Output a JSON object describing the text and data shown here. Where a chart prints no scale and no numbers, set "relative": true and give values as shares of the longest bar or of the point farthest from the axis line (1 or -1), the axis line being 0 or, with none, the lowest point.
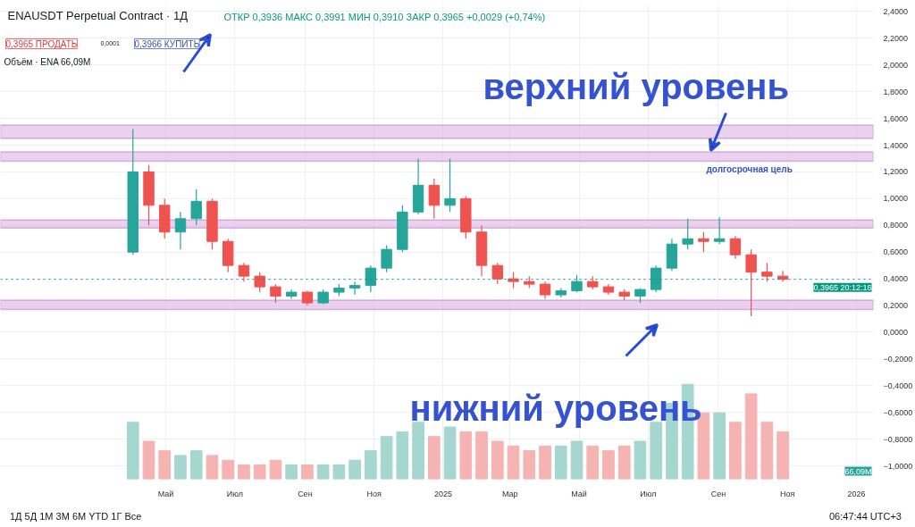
{
  "chart_data": [
    {
      "type": "candlestick",
      "title": "ENAUSDT Perpetual Contract · 1Д",
      "subtitle": "ОТКР 0,3936 МАКС 0,3991 МИН 0,3910 ЗАКР 0,3965 +0,0029 (+0,74%)",
      "x": [
        "2024-04-02",
        "2024-04-16",
        "2024-04-30",
        "2024-05-14",
        "2024-05-28",
        "2024-06-11",
        "2024-06-25",
        "2024-07-09",
        "2024-07-23",
        "2024-08-06",
        "2024-08-20",
        "2024-09-03",
        "2024-09-17",
        "2024-10-01",
        "2024-10-15",
        "2024-10-29",
        "2024-11-12",
        "2024-11-26",
        "2024-12-10",
        "2024-12-24",
        "2025-01-07",
        "2025-01-21",
        "2025-02-04",
        "2025-02-18",
        "2025-03-04",
        "2025-03-18",
        "2025-04-01",
        "2025-04-15",
        "2025-04-29",
        "2025-05-13",
        "2025-05-27",
        "2025-06-10",
        "2025-06-24",
        "2025-07-08",
        "2025-07-22",
        "2025-08-05",
        "2025-08-19",
        "2025-09-02",
        "2025-09-16",
        "2025-09-30",
        "2025-10-14",
        "2025-10-28"
      ],
      "ohlc": [
        [
          0.6,
          1.52,
          0.58,
          1.2
        ],
        [
          1.2,
          1.25,
          0.8,
          0.95
        ],
        [
          0.95,
          1.0,
          0.7,
          0.75
        ],
        [
          0.75,
          0.9,
          0.62,
          0.85
        ],
        [
          0.85,
          1.07,
          0.8,
          0.98
        ],
        [
          0.98,
          1.0,
          0.62,
          0.68
        ],
        [
          0.68,
          0.7,
          0.45,
          0.5
        ],
        [
          0.5,
          0.52,
          0.38,
          0.42
        ],
        [
          0.42,
          0.45,
          0.3,
          0.34
        ],
        [
          0.34,
          0.36,
          0.22,
          0.27
        ],
        [
          0.27,
          0.32,
          0.25,
          0.3
        ],
        [
          0.3,
          0.31,
          0.2,
          0.22
        ],
        [
          0.22,
          0.32,
          0.21,
          0.3
        ],
        [
          0.3,
          0.36,
          0.27,
          0.33
        ],
        [
          0.33,
          0.38,
          0.28,
          0.35
        ],
        [
          0.35,
          0.5,
          0.3,
          0.48
        ],
        [
          0.48,
          0.65,
          0.45,
          0.62
        ],
        [
          0.62,
          0.95,
          0.6,
          0.9
        ],
        [
          0.9,
          1.3,
          0.88,
          1.1
        ],
        [
          1.1,
          1.15,
          0.85,
          0.95
        ],
        [
          0.95,
          1.3,
          0.9,
          1.0
        ],
        [
          1.0,
          1.02,
          0.7,
          0.75
        ],
        [
          0.75,
          0.8,
          0.42,
          0.5
        ],
        [
          0.5,
          0.52,
          0.36,
          0.4
        ],
        [
          0.4,
          0.45,
          0.33,
          0.38
        ],
        [
          0.38,
          0.42,
          0.33,
          0.36
        ],
        [
          0.36,
          0.38,
          0.25,
          0.28
        ],
        [
          0.28,
          0.33,
          0.26,
          0.31
        ],
        [
          0.31,
          0.43,
          0.3,
          0.38
        ],
        [
          0.38,
          0.42,
          0.32,
          0.34
        ],
        [
          0.34,
          0.36,
          0.28,
          0.3
        ],
        [
          0.3,
          0.32,
          0.24,
          0.27
        ],
        [
          0.27,
          0.33,
          0.22,
          0.32
        ],
        [
          0.32,
          0.5,
          0.3,
          0.48
        ],
        [
          0.48,
          0.7,
          0.46,
          0.66
        ],
        [
          0.66,
          0.85,
          0.62,
          0.7
        ],
        [
          0.7,
          0.75,
          0.6,
          0.68
        ],
        [
          0.68,
          0.86,
          0.66,
          0.7
        ],
        [
          0.7,
          0.72,
          0.55,
          0.58
        ],
        [
          0.58,
          0.62,
          0.12,
          0.45
        ],
        [
          0.45,
          0.52,
          0.38,
          0.42
        ],
        [
          0.42,
          0.46,
          0.38,
          0.3965
        ]
      ],
      "colors": [
        "#26a69a",
        "#ef5350",
        "#ef5350",
        "#26a69a",
        "#26a69a",
        "#ef5350",
        "#ef5350",
        "#ef5350",
        "#ef5350",
        "#ef5350",
        "#26a69a",
        "#ef5350",
        "#26a69a",
        "#26a69a",
        "#26a69a",
        "#26a69a",
        "#26a69a",
        "#26a69a",
        "#26a69a",
        "#ef5350",
        "#26a69a",
        "#ef5350",
        "#ef5350",
        "#ef5350",
        "#ef5350",
        "#ef5350",
        "#ef5350",
        "#26a69a",
        "#26a69a",
        "#ef5350",
        "#ef5350",
        "#ef5350",
        "#26a69a",
        "#26a69a",
        "#26a69a",
        "#26a69a",
        "#ef5350",
        "#26a69a",
        "#ef5350",
        "#ef5350",
        "#ef5350",
        "#ef5350"
      ],
      "xlim": [
        "2023-12-07",
        "2026-01-16"
      ],
      "xticks": [
        {
          "value": "2024-05-01",
          "label": "Май"
        },
        {
          "value": "2024-07-01",
          "label": "Июл"
        },
        {
          "value": "2024-09-01",
          "label": "Сен"
        },
        {
          "value": "2024-11-01",
          "label": "Ноя"
        },
        {
          "value": "2025-01-01",
          "label": "2025"
        },
        {
          "value": "2025-03-01",
          "label": "Мар"
        },
        {
          "value": "2025-05-01",
          "label": "Май"
        },
        {
          "value": "2025-07-01",
          "label": "Июл"
        },
        {
          "value": "2025-09-01",
          "label": "Сен"
        },
        {
          "value": "2025-11-01",
          "label": "Ноя"
        },
        {
          "value": "2026-01-01",
          "label": "2026"
        }
      ],
      "ylim": [
        -1.1,
        2.45
      ],
      "yticks": [
        {
          "value": 2.4,
          "label": "2,4000"
        },
        {
          "value": 2.2,
          "label": "2,2000"
        },
        {
          "value": 2.0,
          "label": "2,0000"
        },
        {
          "value": 1.8,
          "label": "1,8000"
        },
        {
          "value": 1.6,
          "label": "1,6000"
        },
        {
          "value": 1.4,
          "label": "1,4000"
        },
        {
          "value": 1.2,
          "label": "1,2000"
        },
        {
          "value": 1.0,
          "label": "1,0000"
        },
        {
          "value": 0.8,
          "label": "0,8000"
        },
        {
          "value": 0.6,
          "label": "0,6000"
        },
        {
          "value": 0.4,
          "label": "0,4000"
        },
        {
          "value": 0.2,
          "label": "0,2000"
        },
        {
          "value": 0,
          "label": "0,0000"
        },
        {
          "value": -0.2,
          "label": "−0,2000"
        },
        {
          "value": -0.4,
          "label": "−0,4000"
        },
        {
          "value": -0.6,
          "label": "−0,6000"
        },
        {
          "value": -0.8,
          "label": "−0,8000"
        },
        {
          "value": -1.0,
          "label": "−1,0000"
        }
      ],
      "grid": true,
      "bands": [
        {
          "axis": "y",
          "from": 1.45,
          "to": 1.55,
          "color": "#e1bee7"
        },
        {
          "axis": "y",
          "from": 1.28,
          "to": 1.35,
          "color": "#e1bee7"
        },
        {
          "axis": "y",
          "from": 0.78,
          "to": 0.84,
          "color": "#e1bee7"
        },
        {
          "axis": "y",
          "from": 0.17,
          "to": 0.24,
          "color": "#e1bee7"
        }
      ],
      "ref_lines": [
        {
          "axis": "y",
          "value": 0.3965,
          "label": "0,3965 20:12:16",
          "color": "#089981",
          "line_style": "dotted"
        }
      ],
      "annotations": [
        "0,3965 ПРОДАТЬ",
        "0,0001",
        "0,3966 КУПИТЬ",
        "Объём · ENA 66,09M",
        "верхний уровень",
        "долгосрочная цель",
        "нижний уровень",
        "1Д 5Д 1М 3М 6М YTD 1Г Все",
        "06:47:44 UTC+3"
      ]
    },
    {
      "type": "bar",
      "relative": true,
      "categories": [
        null,
        null,
        null,
        null,
        null,
        null,
        null,
        null,
        null,
        null,
        null,
        null,
        null,
        null,
        null,
        null,
        null,
        null,
        null,
        null,
        null,
        null,
        null,
        null,
        null,
        null,
        null,
        null,
        null,
        null,
        null,
        null,
        null,
        null,
        null,
        null,
        null,
        null,
        null,
        null,
        null,
        null
      ],
      "values": [
        0.6,
        0.4,
        0.3,
        0.25,
        0.3,
        0.25,
        0.2,
        0.15,
        0.15,
        0.2,
        0.15,
        0.15,
        0.15,
        0.15,
        0.2,
        0.3,
        0.45,
        0.5,
        0.6,
        0.45,
        0.55,
        0.5,
        0.5,
        0.4,
        0.35,
        0.3,
        0.35,
        0.35,
        0.4,
        0.35,
        0.3,
        0.35,
        0.4,
        0.6,
        0.8,
        1.0,
        0.7,
        0.7,
        0.6,
        0.9,
        0.6,
        0.5
      ],
      "colors": [
        "#a5d6d0",
        "#f5b3b2",
        "#f5b3b2",
        "#a5d6d0",
        "#a5d6d0",
        "#f5b3b2",
        "#f5b3b2",
        "#f5b3b2",
        "#f5b3b2",
        "#f5b3b2",
        "#a5d6d0",
        "#f5b3b2",
        "#a5d6d0",
        "#a5d6d0",
        "#a5d6d0",
        "#a5d6d0",
        "#a5d6d0",
        "#a5d6d0",
        "#a5d6d0",
        "#f5b3b2",
        "#a5d6d0",
        "#f5b3b2",
        "#f5b3b2",
        "#f5b3b2",
        "#f5b3b2",
        "#f5b3b2",
        "#f5b3b2",
        "#a5d6d0",
        "#a5d6d0",
        "#f5b3b2",
        "#f5b3b2",
        "#f5b3b2",
        "#a5d6d0",
        "#a5d6d0",
        "#a5d6d0",
        "#a5d6d0",
        "#f5b3b2",
        "#a5d6d0",
        "#f5b3b2",
        "#f5b3b2",
        "#f5b3b2",
        "#f5b3b2"
      ],
      "annotations": [
        "66,09M"
      ]
    }
  ]
}
